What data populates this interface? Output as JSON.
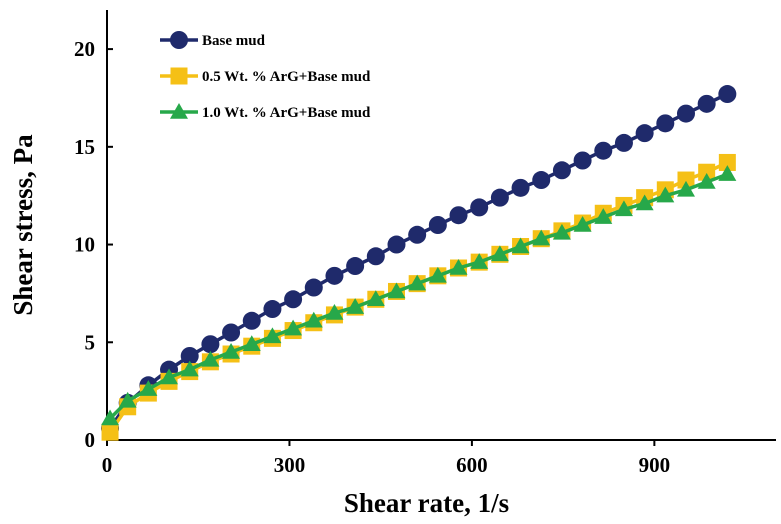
{
  "chart_data": {
    "type": "line",
    "title": "",
    "xlabel": "Shear rate, 1/s",
    "ylabel": "Shear stress, Pa",
    "xlim": [
      0,
      1100
    ],
    "ylim": [
      0,
      22
    ],
    "xticks": [
      0,
      300,
      600,
      900
    ],
    "yticks": [
      0,
      5,
      10,
      15,
      20
    ],
    "xtick_labels": [
      "0",
      "300",
      "600",
      "900"
    ],
    "ytick_labels": [
      "0",
      "5",
      "10",
      "15",
      "20"
    ],
    "legend_position": "top-left",
    "grid": false,
    "series": [
      {
        "name": "Base mud",
        "color": "#1f2a6b",
        "marker": "circle",
        "x": [
          5,
          34,
          68,
          102,
          136,
          170,
          204,
          238,
          272,
          306,
          340,
          374,
          408,
          442,
          476,
          510,
          544,
          578,
          612,
          646,
          680,
          714,
          748,
          782,
          816,
          850,
          884,
          918,
          952,
          986,
          1020
        ],
        "y": [
          0.6,
          1.9,
          2.8,
          3.6,
          4.3,
          4.9,
          5.5,
          6.1,
          6.7,
          7.2,
          7.8,
          8.4,
          8.9,
          9.4,
          10.0,
          10.5,
          11.0,
          11.5,
          11.9,
          12.4,
          12.9,
          13.3,
          13.8,
          14.3,
          14.8,
          15.2,
          15.7,
          16.2,
          16.7,
          17.2,
          17.7
        ]
      },
      {
        "name": "0.5 Wt. % ArG+Base mud",
        "color": "#f5c016",
        "marker": "square",
        "x": [
          5,
          34,
          68,
          102,
          136,
          170,
          204,
          238,
          272,
          306,
          340,
          374,
          408,
          442,
          476,
          510,
          544,
          578,
          612,
          646,
          680,
          714,
          748,
          782,
          816,
          850,
          884,
          918,
          952,
          986,
          1020
        ],
        "y": [
          0.4,
          1.7,
          2.4,
          3.0,
          3.5,
          4.0,
          4.4,
          4.8,
          5.2,
          5.6,
          6.0,
          6.4,
          6.8,
          7.2,
          7.6,
          8.0,
          8.4,
          8.8,
          9.1,
          9.5,
          9.9,
          10.3,
          10.7,
          11.1,
          11.6,
          12.0,
          12.4,
          12.8,
          13.3,
          13.7,
          14.2
        ]
      },
      {
        "name": "1.0 Wt. % ArG+Base mud",
        "color": "#27a84a",
        "marker": "triangle",
        "x": [
          5,
          34,
          68,
          102,
          136,
          170,
          204,
          238,
          272,
          306,
          340,
          374,
          408,
          442,
          476,
          510,
          544,
          578,
          612,
          646,
          680,
          714,
          748,
          782,
          816,
          850,
          884,
          918,
          952,
          986,
          1020
        ],
        "y": [
          1.1,
          2.0,
          2.6,
          3.2,
          3.6,
          4.1,
          4.5,
          4.9,
          5.3,
          5.7,
          6.1,
          6.5,
          6.8,
          7.2,
          7.6,
          8.0,
          8.4,
          8.8,
          9.1,
          9.5,
          9.9,
          10.3,
          10.6,
          11.0,
          11.4,
          11.8,
          12.1,
          12.5,
          12.8,
          13.2,
          13.6
        ]
      }
    ]
  }
}
